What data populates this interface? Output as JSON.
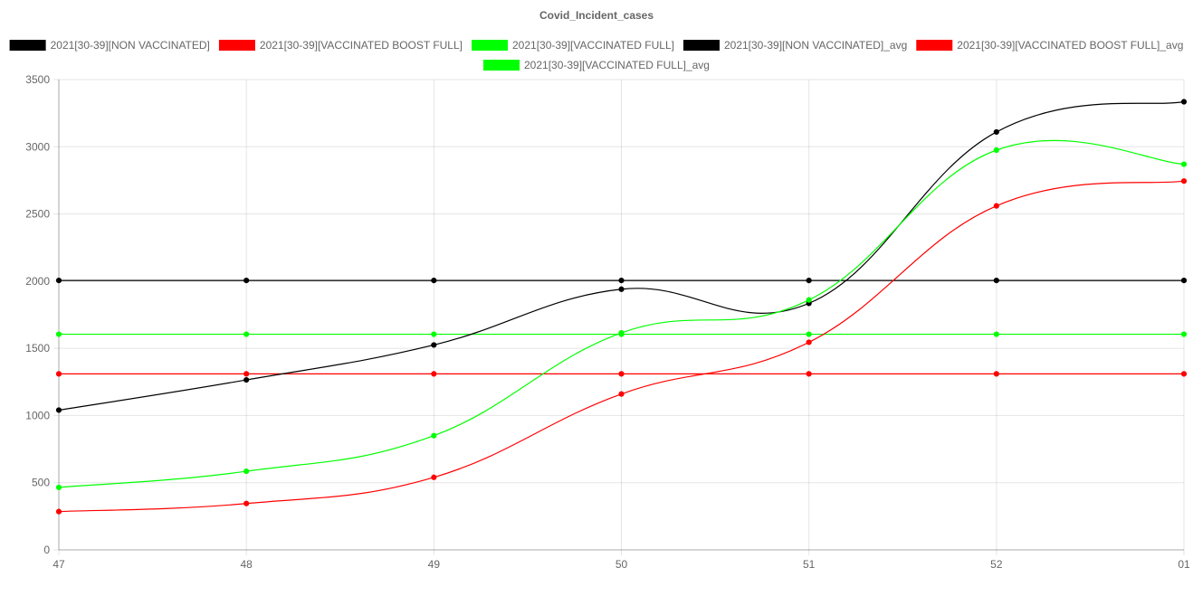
{
  "chart_data": {
    "type": "line",
    "title": "Covid_Incident_cases",
    "xlabel": "",
    "ylabel": "",
    "categories": [
      "47",
      "48",
      "49",
      "50",
      "51",
      "52",
      "01"
    ],
    "ylim": [
      0,
      3500
    ],
    "yticks": [
      "0",
      "500",
      "1000",
      "1500",
      "2000",
      "2500",
      "3000",
      "3500"
    ],
    "grid": true,
    "legend_position": "top",
    "series": [
      {
        "name": "2021[30-39][NON VACCINATED]",
        "color": "#000000",
        "values": [
          1040,
          1265,
          1525,
          1940,
          1835,
          3110,
          3335
        ]
      },
      {
        "name": "2021[30-39][VACCINATED BOOST FULL]",
        "color": "#ff0000",
        "values": [
          285,
          345,
          540,
          1160,
          1545,
          2560,
          2745
        ]
      },
      {
        "name": "2021[30-39][VACCINATED FULL]",
        "color": "#00ff00",
        "values": [
          465,
          585,
          850,
          1615,
          1860,
          2975,
          2870
        ]
      },
      {
        "name": "2021[30-39][NON VACCINATED]_avg",
        "color": "#000000",
        "values": [
          2005,
          2005,
          2005,
          2005,
          2005,
          2005,
          2005
        ]
      },
      {
        "name": "2021[30-39][VACCINATED BOOST FULL]_avg",
        "color": "#ff0000",
        "values": [
          1310,
          1310,
          1310,
          1310,
          1310,
          1310,
          1310
        ]
      },
      {
        "name": "2021[30-39][VACCINATED FULL]_avg",
        "color": "#00ff00",
        "values": [
          1605,
          1605,
          1605,
          1605,
          1605,
          1605,
          1605
        ]
      }
    ]
  }
}
